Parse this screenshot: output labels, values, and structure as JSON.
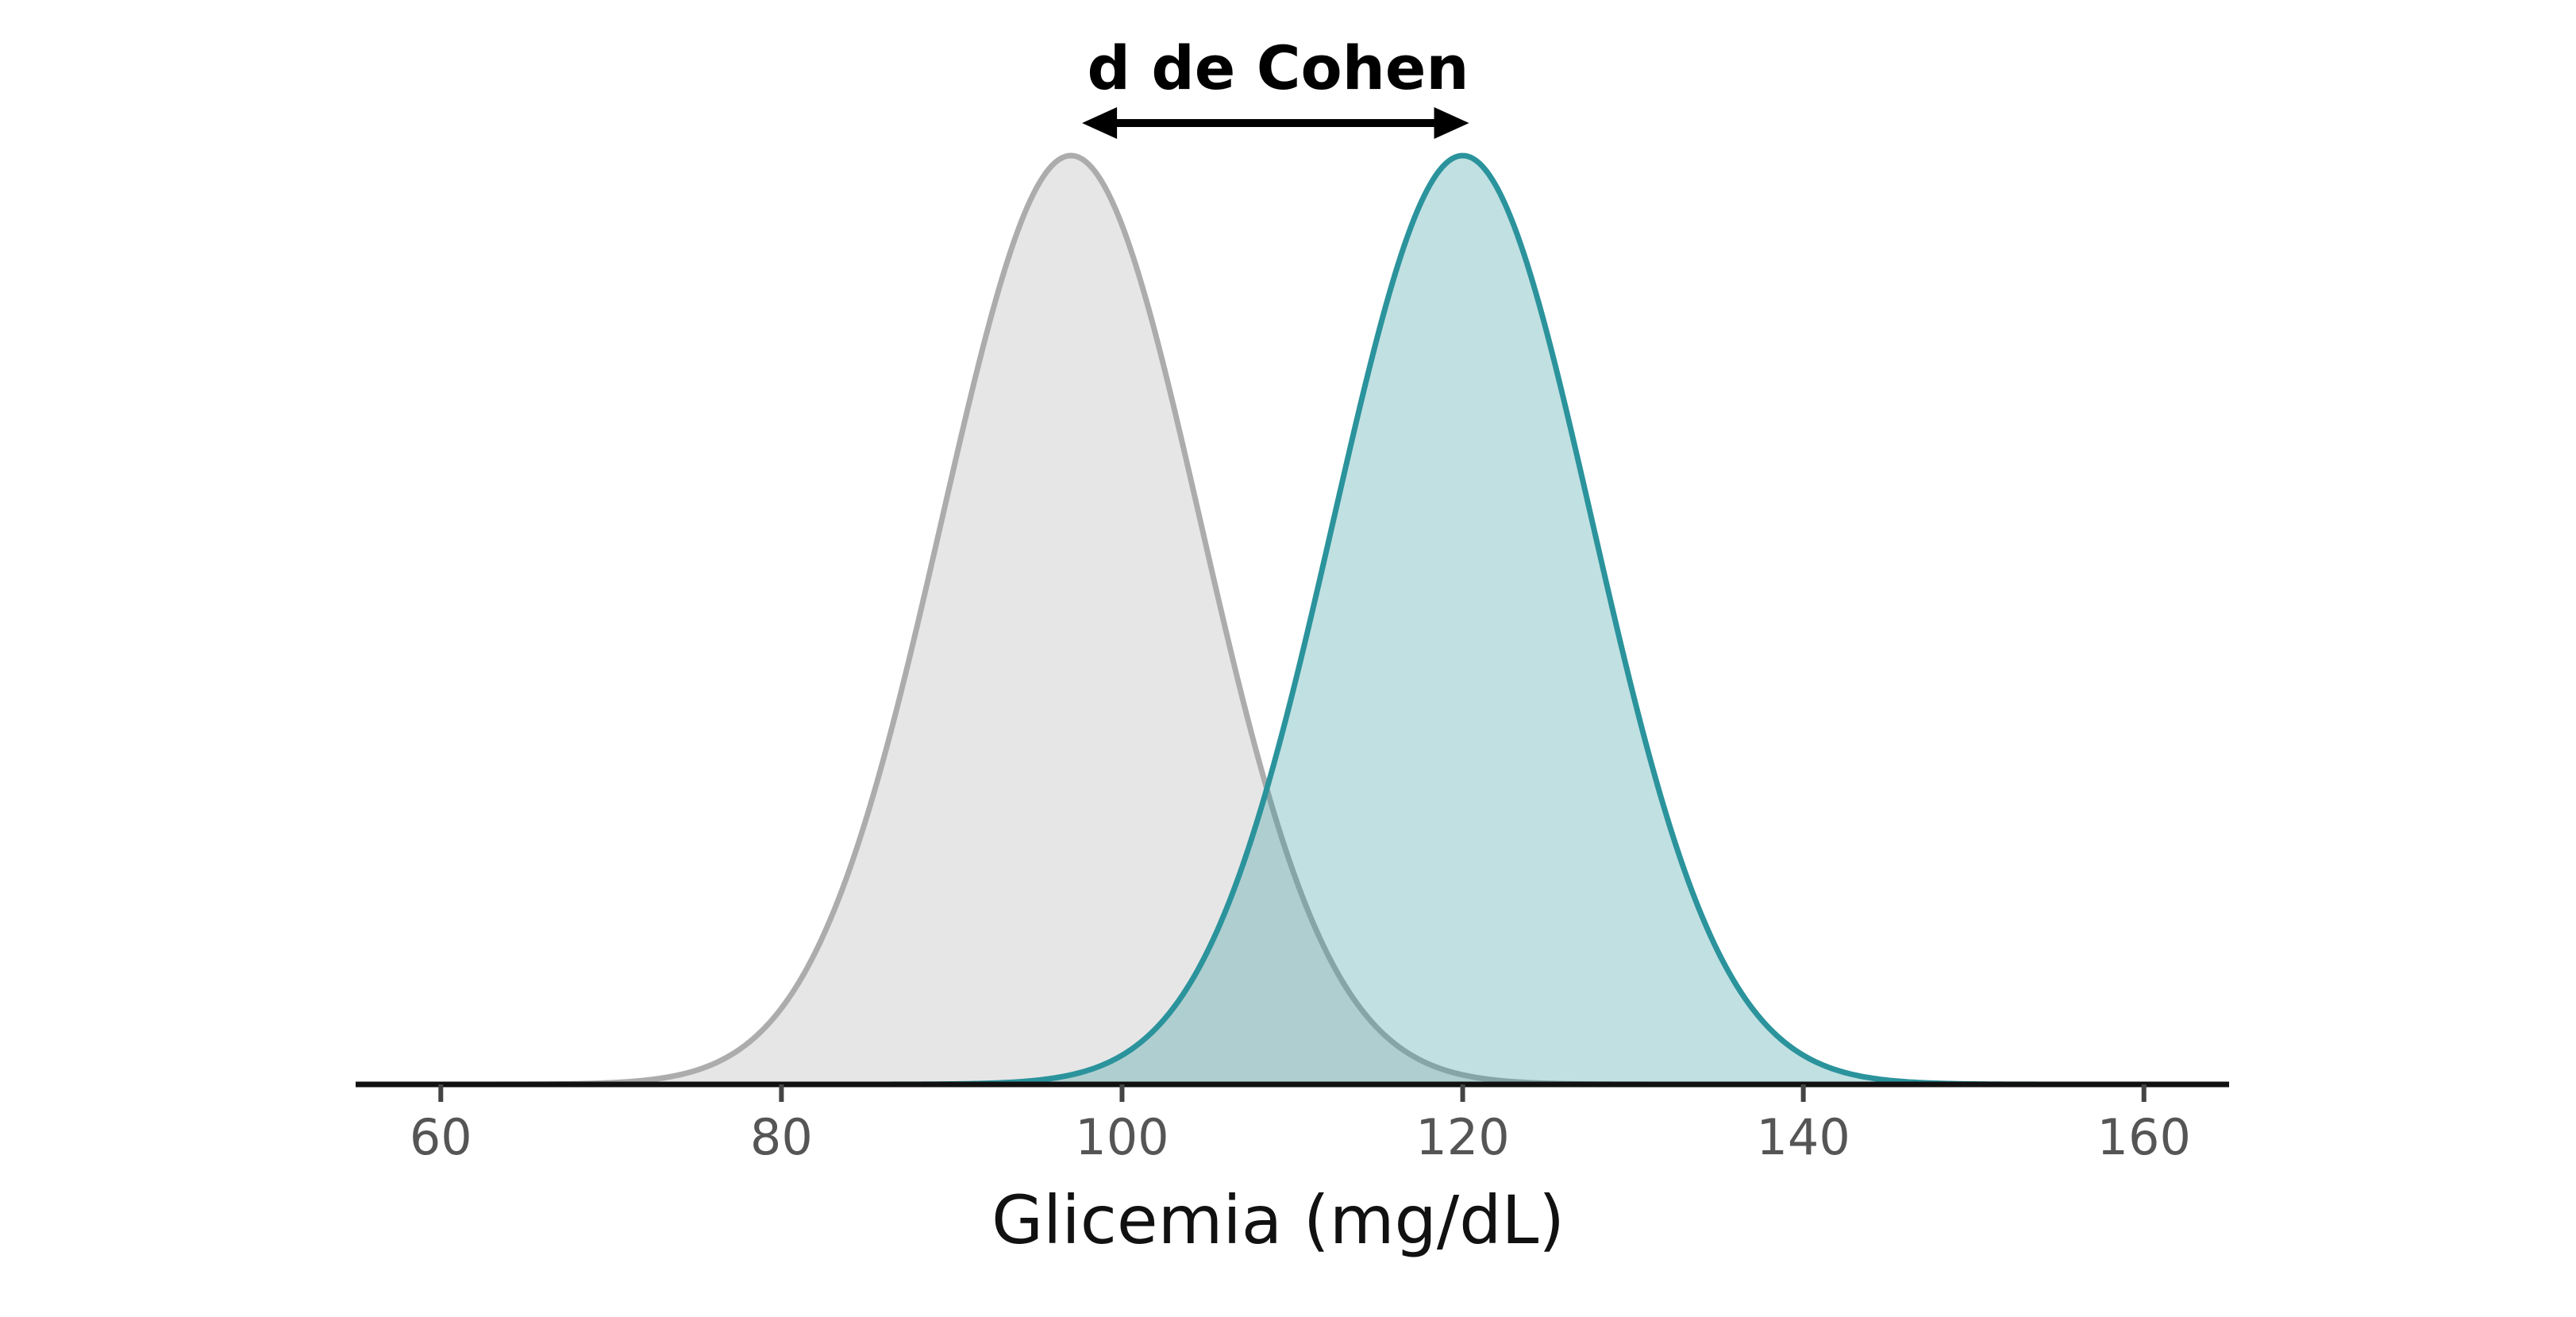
{
  "chart_data": {
    "type": "area",
    "xlabel": "Glicemia (mg/dL)",
    "xlim": [
      55,
      165
    ],
    "x_ticks": [
      60,
      80,
      100,
      120,
      140,
      160
    ],
    "x_tick_labels": [
      "60",
      "80",
      "100",
      "120",
      "140",
      "160"
    ],
    "y_axis_visible": false,
    "grid": false,
    "series": [
      {
        "distribution": "normal",
        "mean": 97,
        "sd": 7.6,
        "stroke_color": "#acacac",
        "fill_color": "#e6e6e6",
        "fill_opacity": 1.0
      },
      {
        "distribution": "normal",
        "mean": 120,
        "sd": 7.6,
        "stroke_color": "#2b939c",
        "fill_color": "#2b939c",
        "fill_opacity": 0.29
      }
    ],
    "annotation": {
      "label": "d de Cohen",
      "from_x": 97,
      "to_x": 120,
      "style": "double-arrow"
    }
  },
  "colors": {
    "axis": "#111111",
    "tick_label": "#555555",
    "arrow": "#000000"
  }
}
